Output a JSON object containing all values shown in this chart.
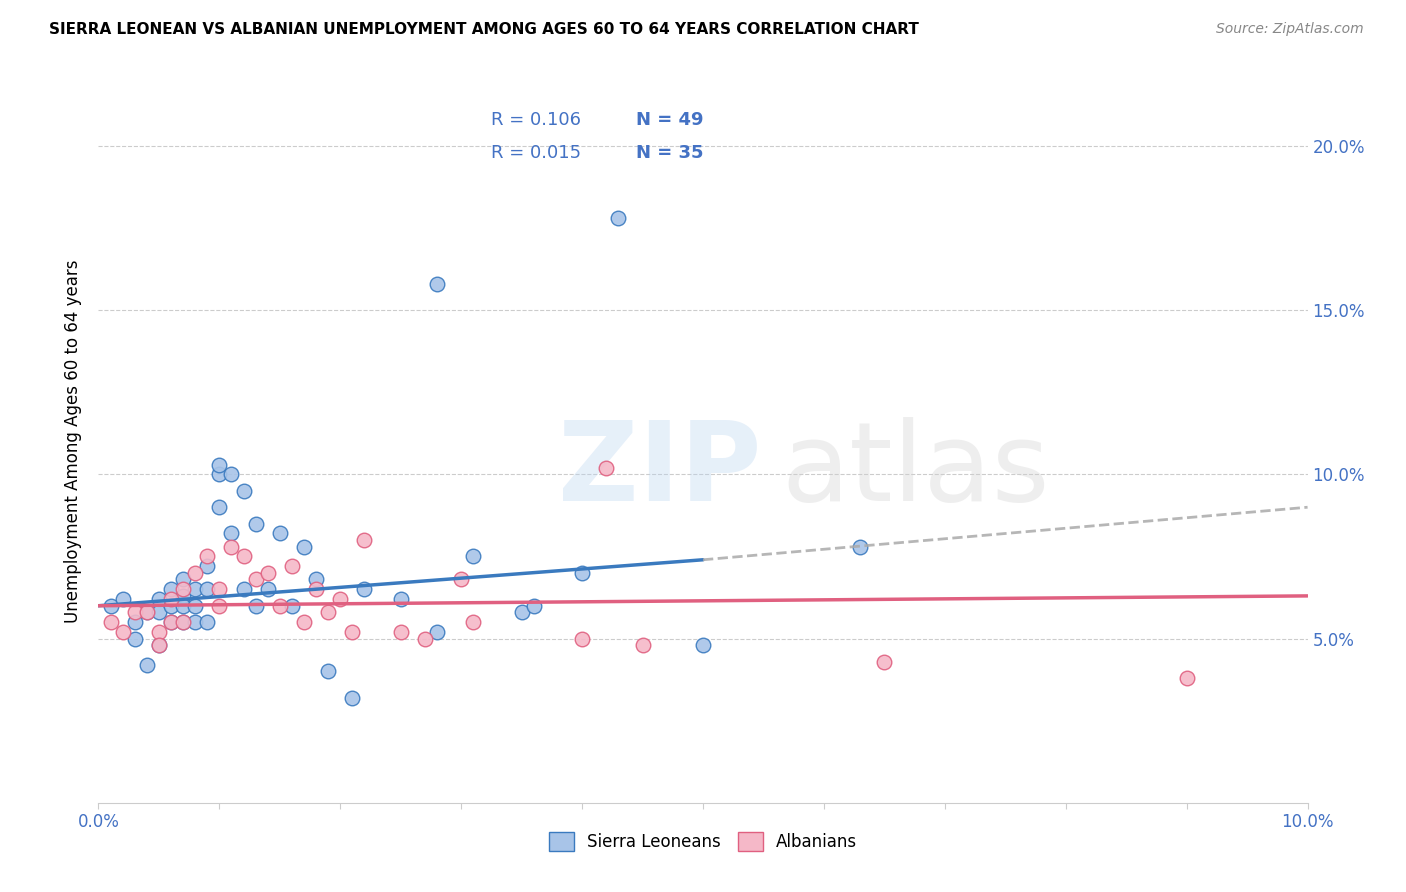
{
  "title": "SIERRA LEONEAN VS ALBANIAN UNEMPLOYMENT AMONG AGES 60 TO 64 YEARS CORRELATION CHART",
  "source": "Source: ZipAtlas.com",
  "ylabel": "Unemployment Among Ages 60 to 64 years",
  "xlim": [
    0.0,
    0.1
  ],
  "ylim": [
    0.0,
    0.22
  ],
  "xticks": [
    0.0,
    0.01,
    0.02,
    0.03,
    0.04,
    0.05,
    0.06,
    0.07,
    0.08,
    0.09,
    0.1
  ],
  "yticks": [
    0.0,
    0.05,
    0.1,
    0.15,
    0.2
  ],
  "ytick_labels": [
    "",
    "5.0%",
    "10.0%",
    "15.0%",
    "20.0%"
  ],
  "xtick_labels": [
    "0.0%",
    "",
    "",
    "",
    "",
    "",
    "",
    "",
    "",
    "",
    "10.0%"
  ],
  "blue_color": "#a8c4e8",
  "pink_color": "#f5b8c8",
  "trend_blue": "#3a7abf",
  "trend_pink": "#e06080",
  "axis_color": "#4472c4",
  "legend_r1": "R = 0.106",
  "legend_n1": "N = 49",
  "legend_r2": "R = 0.015",
  "legend_n2": "N = 35",
  "trend_blue_x0": 0.0,
  "trend_blue_y0": 0.06,
  "trend_blue_x1": 0.05,
  "trend_blue_y1": 0.074,
  "trend_blue_dash_x1": 0.1,
  "trend_blue_dash_y1": 0.09,
  "trend_pink_x0": 0.0,
  "trend_pink_y0": 0.06,
  "trend_pink_x1": 0.1,
  "trend_pink_y1": 0.063,
  "sl_x": [
    0.001,
    0.002,
    0.003,
    0.003,
    0.004,
    0.004,
    0.005,
    0.005,
    0.005,
    0.006,
    0.006,
    0.006,
    0.007,
    0.007,
    0.007,
    0.007,
    0.008,
    0.008,
    0.008,
    0.009,
    0.009,
    0.009,
    0.01,
    0.01,
    0.01,
    0.011,
    0.011,
    0.012,
    0.012,
    0.013,
    0.013,
    0.014,
    0.015,
    0.016,
    0.017,
    0.018,
    0.019,
    0.021,
    0.022,
    0.025,
    0.028,
    0.028,
    0.031,
    0.035,
    0.036,
    0.04,
    0.043,
    0.05,
    0.063
  ],
  "sl_y": [
    0.06,
    0.062,
    0.055,
    0.05,
    0.058,
    0.042,
    0.062,
    0.058,
    0.048,
    0.065,
    0.06,
    0.055,
    0.068,
    0.063,
    0.06,
    0.055,
    0.065,
    0.06,
    0.055,
    0.072,
    0.065,
    0.055,
    0.1,
    0.103,
    0.09,
    0.1,
    0.082,
    0.095,
    0.065,
    0.085,
    0.06,
    0.065,
    0.082,
    0.06,
    0.078,
    0.068,
    0.04,
    0.032,
    0.065,
    0.062,
    0.052,
    0.158,
    0.075,
    0.058,
    0.06,
    0.07,
    0.178,
    0.048,
    0.078
  ],
  "al_x": [
    0.001,
    0.002,
    0.003,
    0.004,
    0.005,
    0.005,
    0.006,
    0.006,
    0.007,
    0.007,
    0.008,
    0.009,
    0.01,
    0.01,
    0.011,
    0.012,
    0.013,
    0.014,
    0.015,
    0.016,
    0.017,
    0.018,
    0.019,
    0.02,
    0.021,
    0.022,
    0.025,
    0.027,
    0.03,
    0.031,
    0.04,
    0.042,
    0.045,
    0.065,
    0.09
  ],
  "al_y": [
    0.055,
    0.052,
    0.058,
    0.058,
    0.052,
    0.048,
    0.062,
    0.055,
    0.065,
    0.055,
    0.07,
    0.075,
    0.065,
    0.06,
    0.078,
    0.075,
    0.068,
    0.07,
    0.06,
    0.072,
    0.055,
    0.065,
    0.058,
    0.062,
    0.052,
    0.08,
    0.052,
    0.05,
    0.068,
    0.055,
    0.05,
    0.102,
    0.048,
    0.043,
    0.038
  ]
}
